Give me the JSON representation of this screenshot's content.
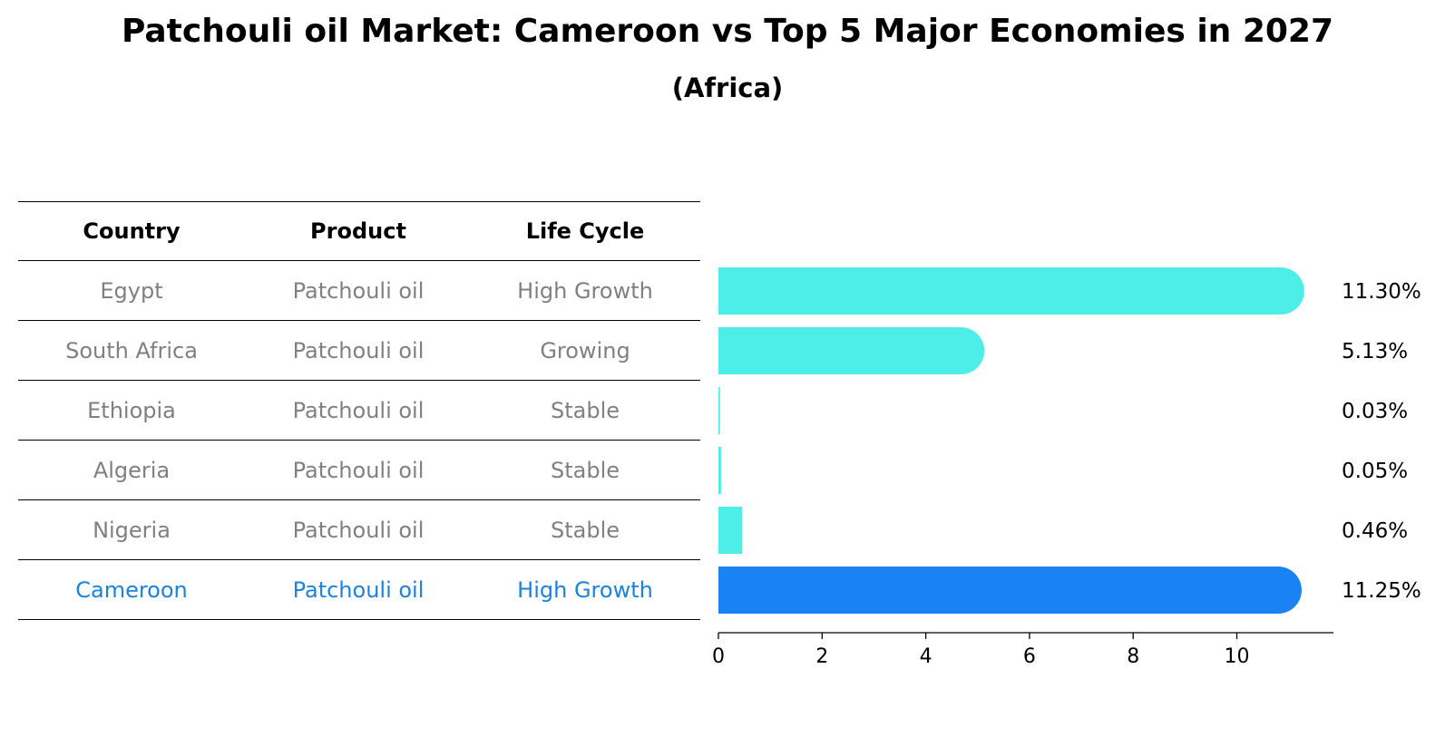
{
  "title": "Patchouli oil Market: Cameroon vs Top 5 Major Economies in 2027",
  "subtitle": "(Africa)",
  "table": {
    "headers": [
      "Country",
      "Product",
      "Life Cycle"
    ],
    "rows": [
      {
        "country": "Egypt",
        "product": "Patchouli oil",
        "life_cycle": "High Growth"
      },
      {
        "country": "South Africa",
        "product": "Patchouli oil",
        "life_cycle": "Growing"
      },
      {
        "country": "Ethiopia",
        "product": "Patchouli oil",
        "life_cycle": "Stable"
      },
      {
        "country": "Algeria",
        "product": "Patchouli oil",
        "life_cycle": "Stable"
      },
      {
        "country": "Nigeria",
        "product": "Patchouli oil",
        "life_cycle": "Stable"
      },
      {
        "country": "Cameroon",
        "product": "Patchouli oil",
        "life_cycle": "High Growth"
      }
    ]
  },
  "chart_data": {
    "type": "bar",
    "orientation": "horizontal",
    "categories": [
      "Egypt",
      "South Africa",
      "Ethiopia",
      "Algeria",
      "Nigeria",
      "Cameroon"
    ],
    "values": [
      11.3,
      5.13,
      0.03,
      0.05,
      0.46,
      11.25
    ],
    "value_labels": [
      "11.30%",
      "5.13%",
      "0.03%",
      "0.05%",
      "0.46%",
      "11.25%"
    ],
    "xlim": [
      0,
      11.3
    ],
    "xticks": [
      0,
      2,
      4,
      6,
      8,
      10
    ],
    "highlight": "Cameroon",
    "colors": {
      "default": "#4deee8",
      "highlight": "#1a82f5"
    },
    "grid": false
  }
}
